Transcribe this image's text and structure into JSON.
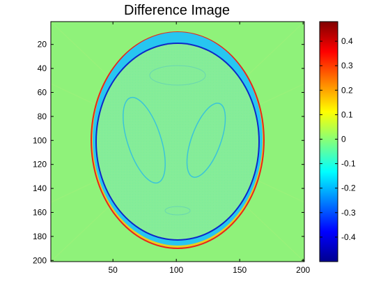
{
  "chart_data": {
    "type": "heatmap",
    "title": "Difference Image",
    "xlabel": "",
    "ylabel": "",
    "x_range": [
      1,
      201
    ],
    "y_range": [
      1,
      201
    ],
    "y_reversed": true,
    "x_ticks": [
      50,
      100,
      150,
      200
    ],
    "y_ticks": [
      20,
      40,
      60,
      80,
      100,
      120,
      140,
      160,
      180,
      200
    ],
    "colorbar": {
      "colormap": "jet",
      "range": [
        -0.5,
        0.48
      ],
      "ticks": [
        -0.4,
        -0.3,
        -0.2,
        -0.1,
        0,
        0.1,
        0.2,
        0.3,
        0.4
      ],
      "tick_labels": [
        "-0.4",
        "-0.3",
        "-0.2",
        "-0.1",
        "0",
        "0.1",
        "0.2",
        "0.3",
        "0.4"
      ]
    },
    "image_description": {
      "background_value": 0.05,
      "outer_ellipse": {
        "center": [
          101,
          101
        ],
        "semi_axes": [
          69,
          92
        ],
        "edge_value": 0.45
      },
      "skull_ring": {
        "semi_axes": [
          67,
          90
        ],
        "thickness": 3,
        "value": -0.2
      },
      "inner_edge_value": -0.4,
      "interior_value": 0.0
    }
  }
}
